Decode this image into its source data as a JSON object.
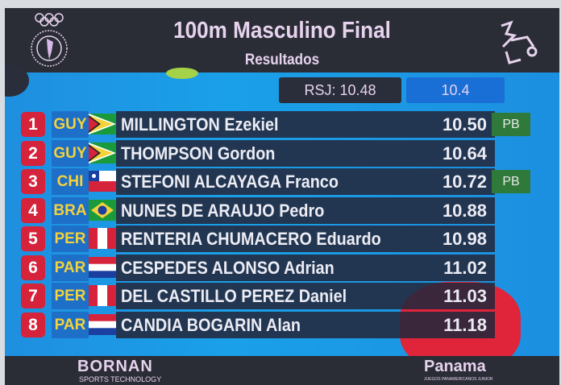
{
  "header": {
    "title": "100m Masculino Final",
    "subtitle": "Resultados",
    "left_logo": "odepa-olympic-rings-logo",
    "right_logo": "athletics-mascot-logo"
  },
  "records": {
    "rsj": "RSJ: 10.48",
    "wind": "10.4"
  },
  "colors": {
    "rank_badge": "#d4233a",
    "country_code": "#f4d23a",
    "pb_badge": "#2f7a3a",
    "title_text": "#e6d3ee"
  },
  "results": [
    {
      "rank": "1",
      "country": "GUY",
      "name": "MILLINGTON Ezekiel",
      "time": "10.50",
      "note": "PB"
    },
    {
      "rank": "2",
      "country": "GUY",
      "name": "THOMPSON Gordon",
      "time": "10.64",
      "note": ""
    },
    {
      "rank": "3",
      "country": "CHI",
      "name": "STEFONI ALCAYAGA Franco",
      "time": "10.72",
      "note": "PB"
    },
    {
      "rank": "4",
      "country": "BRA",
      "name": "NUNES DE ARAUJO Pedro",
      "time": "10.88",
      "note": ""
    },
    {
      "rank": "5",
      "country": "PER",
      "name": "RENTERIA CHUMACERO Eduardo",
      "time": "10.98",
      "note": ""
    },
    {
      "rank": "6",
      "country": "PAR",
      "name": "CESPEDES ALONSO Adrian",
      "time": "11.02",
      "note": ""
    },
    {
      "rank": "7",
      "country": "PER",
      "name": "DEL CASTILLO PEREZ Daniel",
      "time": "11.03",
      "note": ""
    },
    {
      "rank": "8",
      "country": "PAR",
      "name": "CANDIA BOGARIN Alan",
      "time": "11.18",
      "note": ""
    }
  ],
  "footer": {
    "sponsor": "BORNAN",
    "sponsor_tagline": "SPORTS TECHNOLOGY",
    "host": "Panama",
    "host_tagline": "JUEGOS PANAMERICANOS JUNIOR"
  }
}
